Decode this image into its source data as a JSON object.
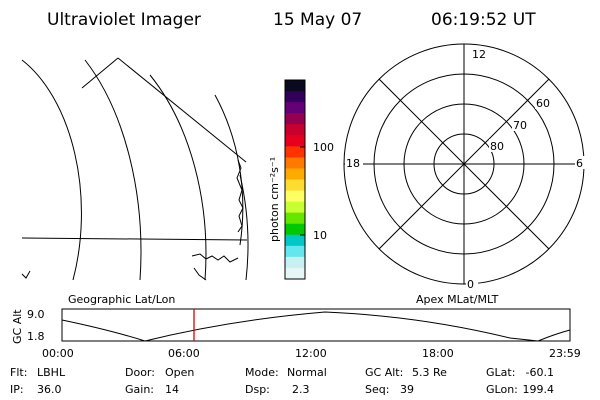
{
  "header": {
    "instrument": "Ultraviolet Imager",
    "date": "15 May 07",
    "time": "06:19:52 UT"
  },
  "colorbar": {
    "label": "photon cm⁻²s⁻¹",
    "tick_labels": [
      "100",
      "10"
    ],
    "colors": [
      "#0a0a1e",
      "#32005a",
      "#640078",
      "#960050",
      "#c8002d",
      "#e6001e",
      "#ff3200",
      "#ff7800",
      "#ffaa00",
      "#ffdc32",
      "#ffff64",
      "#c8ff32",
      "#64e600",
      "#00c800",
      "#00c8c8",
      "#64e6f0",
      "#c8f0f0",
      "#e6f5f5"
    ]
  },
  "map_labels": {
    "geographic": "Geographic Lat/Lon",
    "apex": "Apex MLat/MLT"
  },
  "polar_plot": {
    "mlt_labels": {
      "top": "12",
      "right": "6",
      "bottom": "0",
      "left": "18"
    },
    "lat_labels": [
      "60",
      "70",
      "80"
    ]
  },
  "altitude_plot": {
    "axis_title": "GC Alt",
    "y_ticks": [
      "9.0",
      "1.8"
    ],
    "x_ticks": [
      "00:00",
      "06:00",
      "12:00",
      "18:00",
      "23:59"
    ],
    "current_time_color": "#e00000"
  },
  "status": {
    "flt_label": "Flt:",
    "flt_value": "LBHL",
    "ip_label": "IP:",
    "ip_value": "36.0",
    "door_label": "Door:",
    "door_value": "Open",
    "gain_label": "Gain:",
    "gain_value": "14",
    "mode_label": "Mode:",
    "mode_value": "Normal",
    "dsp_label": "Dsp:",
    "dsp_value": "2.3",
    "gcalt_label": "GC Alt:",
    "gcalt_value": "5.3 Re",
    "seq_label": "Seq:",
    "seq_value": "39",
    "glat_label": "GLat:",
    "glat_value": "-60.1",
    "glon_label": "GLon:",
    "glon_value": "199.4"
  }
}
